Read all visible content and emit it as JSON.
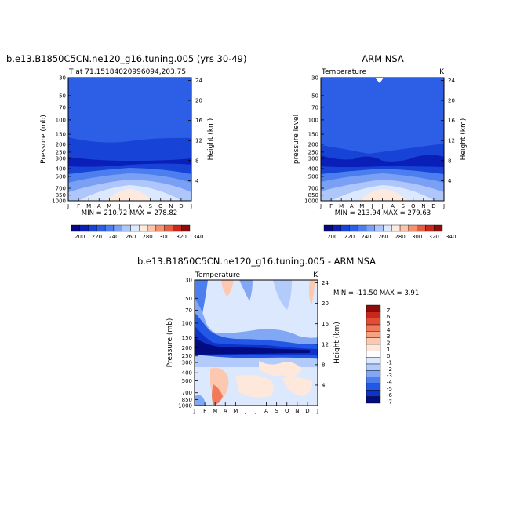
{
  "chart_data": [
    {
      "type": "heatmap",
      "title": "b.e13.B1850C5CN.ne120_g16.tuning.005 (yrs 30-49)",
      "subtitle_left": "T at 71.15184020996094,203.75",
      "ylabel": "Pressure (mb)",
      "ylabel_right": "Height (km)",
      "x_ticks": [
        "J",
        "F",
        "M",
        "A",
        "M",
        "J",
        "J",
        "A",
        "S",
        "O",
        "N",
        "D",
        "J"
      ],
      "y_ticks": [
        "30",
        "50",
        "70",
        "100",
        "150",
        "200",
        "250",
        "300",
        "400",
        "500",
        "700",
        "850",
        "1000"
      ],
      "height_ticks": [
        "24",
        "20",
        "16",
        "12",
        "8",
        "4"
      ],
      "stats": "MIN = 210.72  MAX = 278.82",
      "levels": [
        200,
        220,
        240,
        260,
        280,
        300,
        320,
        340
      ]
    },
    {
      "type": "heatmap",
      "title": "ARM NSA",
      "subtitle_left": "Temperature",
      "subtitle_right": "K",
      "ylabel": "pressure level",
      "ylabel_right": "Height (km)",
      "x_ticks": [
        "J",
        "F",
        "M",
        "A",
        "M",
        "J",
        "J",
        "A",
        "S",
        "O",
        "N",
        "D",
        "J"
      ],
      "y_ticks": [
        "30",
        "50",
        "70",
        "100",
        "150",
        "200",
        "250",
        "300",
        "400",
        "500",
        "700",
        "850",
        "1000"
      ],
      "height_ticks": [
        "24",
        "20",
        "16",
        "12",
        "8",
        "4"
      ],
      "stats": "MIN = 213.94  MAX = 279.63",
      "levels": [
        200,
        220,
        240,
        260,
        280,
        300,
        320,
        340
      ]
    },
    {
      "type": "heatmap",
      "title": "b.e13.B1850C5CN.ne120_g16.tuning.005 - ARM NSA",
      "subtitle_left": "Temperature",
      "subtitle_right": "K",
      "ylabel": "Pressure (mb)",
      "ylabel_right": "Height (km)",
      "x_ticks": [
        "J",
        "F",
        "M",
        "A",
        "M",
        "J",
        "J",
        "A",
        "S",
        "O",
        "N",
        "D",
        "J"
      ],
      "y_ticks": [
        "30",
        "50",
        "70",
        "100",
        "150",
        "200",
        "250",
        "300",
        "400",
        "500",
        "700",
        "850",
        "1000"
      ],
      "height_ticks": [
        "24",
        "20",
        "16",
        "12",
        "8",
        "4"
      ],
      "stats": "MIN = -11.50 MAX =    3.91",
      "levels": [
        7,
        6,
        5,
        4,
        3,
        2,
        1,
        0,
        -1,
        -2,
        -3,
        -4,
        -5,
        -6,
        -7
      ]
    }
  ],
  "colors": {
    "bg": "#ffffff",
    "abs_scale": [
      "#05087e",
      "#0a1eb8",
      "#1744d6",
      "#2d5ee6",
      "#4d7ef0",
      "#7aa0f5",
      "#aec6fa",
      "#dce8fd",
      "#fde9de",
      "#fbc3a8",
      "#f5916e",
      "#e55c3e",
      "#c8281b",
      "#8e0d0a"
    ],
    "diff_scale": [
      "#8e0d0a",
      "#c8281b",
      "#e44d35",
      "#f27a5a",
      "#f9a283",
      "#fcc8b0",
      "#fee8dc",
      "#ffffff",
      "#dbe8fd",
      "#b3cbfa",
      "#82a8f5",
      "#4d7ef0",
      "#2358e6",
      "#0e33c8",
      "#020c80"
    ]
  }
}
